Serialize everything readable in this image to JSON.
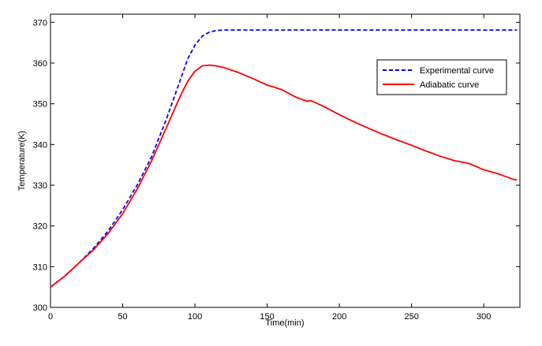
{
  "chart_data": {
    "type": "line",
    "title": "",
    "xlabel": "Time(min)",
    "ylabel": "Temperature(K)",
    "xlim": [
      0,
      325
    ],
    "ylim": [
      300,
      372
    ],
    "x_ticks": [
      0,
      50,
      100,
      150,
      200,
      250,
      300
    ],
    "y_ticks": [
      300,
      310,
      320,
      330,
      340,
      350,
      360,
      370
    ],
    "grid": false,
    "legend_position": "top-right",
    "series": [
      {
        "name": "Experimental curve",
        "color": "#0000ff",
        "dash": "dashed",
        "x": [
          0,
          10,
          20,
          30,
          40,
          50,
          60,
          70,
          80,
          90,
          95,
          100,
          105,
          110,
          115,
          120,
          125,
          150,
          200,
          250,
          300,
          323
        ],
        "y": [
          305,
          307.7,
          311,
          314.6,
          318.8,
          324,
          330,
          337,
          346,
          356,
          361,
          364.4,
          366.6,
          367.6,
          368,
          368.1,
          368.1,
          368.1,
          368.1,
          368.1,
          368.1,
          368.1
        ]
      },
      {
        "name": "Adiabatic curve",
        "color": "#ff0000",
        "dash": "solid",
        "x": [
          0,
          10,
          20,
          30,
          40,
          50,
          60,
          70,
          80,
          90,
          95,
          100,
          105,
          110,
          115,
          120,
          130,
          140,
          150,
          160,
          170,
          178,
          180,
          182,
          190,
          200,
          210,
          220,
          230,
          240,
          250,
          260,
          270,
          280,
          285,
          290,
          300,
          310,
          320,
          323
        ],
        "y": [
          305,
          307.7,
          311,
          314.2,
          318.2,
          323,
          329,
          336,
          344,
          352,
          355.5,
          358,
          359.3,
          359.5,
          359.3,
          358.9,
          357.7,
          356.2,
          354.6,
          353.5,
          351.6,
          350.6,
          350.8,
          350.5,
          349.2,
          347.3,
          345.6,
          344,
          342.5,
          341.1,
          339.8,
          338.4,
          337.1,
          336,
          335.7,
          335.3,
          333.8,
          332.8,
          331.5,
          331.3
        ]
      }
    ]
  }
}
